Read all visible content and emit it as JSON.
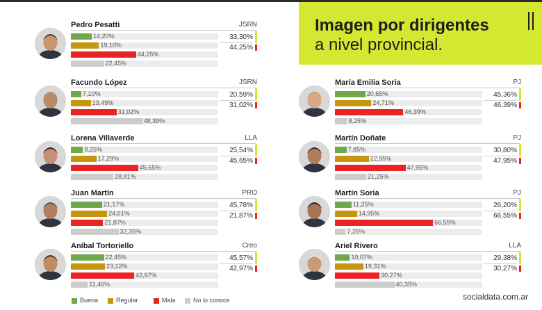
{
  "header": {
    "title_bold": "Imagen por dirigentes",
    "title_light": "a nivel provincial."
  },
  "brand": "socialdata.com.ar",
  "colors": {
    "buena": "#6fa84a",
    "regular": "#c8950e",
    "mala": "#ea2424",
    "no_lo_conoce": "#cccccc",
    "accent": "#d4e831",
    "track": "#ececec"
  },
  "legend": [
    {
      "key": "buena",
      "label": "Buena"
    },
    {
      "key": "regular",
      "label": "Regular"
    },
    {
      "key": "mala",
      "label": "Mala"
    },
    {
      "key": "no_lo_conoce",
      "label": "No lo conoce"
    }
  ],
  "chart_data": {
    "type": "bar",
    "series_names": [
      "Buena",
      "Regular",
      "Mala",
      "No lo conoce"
    ],
    "people": [
      {
        "name": "Pedro Pesatti",
        "party": "JSRN",
        "buena": "14,20%",
        "regular": "19,10%",
        "mala": "44,25%",
        "no_lo_conoce": "22,45%",
        "positive": "33,30%",
        "negative": "44,25%",
        "values": [
          14.2,
          19.1,
          44.25,
          22.45
        ]
      },
      {
        "name": "Facundo López",
        "party": "JSRN",
        "buena": "7,10%",
        "regular": "13,49%",
        "mala": "31,02%",
        "no_lo_conoce": "48,39%",
        "positive": "20,59%",
        "negative": "31,02%",
        "values": [
          7.1,
          13.49,
          31.02,
          48.39
        ]
      },
      {
        "name": "Lorena Villaverde",
        "party": "LLA",
        "buena": "8,25%",
        "regular": "17,29%",
        "mala": "45,65%",
        "no_lo_conoce": "28,81%",
        "positive": "25,54%",
        "negative": "45,65%",
        "values": [
          8.25,
          17.29,
          45.65,
          28.81
        ]
      },
      {
        "name": "Juan Martín",
        "party": "PRO",
        "buena": "21,17%",
        "regular": "24,61%",
        "mala": "21,87%",
        "no_lo_conoce": "32,35%",
        "positive": "45,78%",
        "negative": "21,87%",
        "values": [
          21.17,
          24.61,
          21.87,
          32.35
        ]
      },
      {
        "name": "Aníbal Tortoriello",
        "party": "Creo",
        "buena": "22,45%",
        "regular": "23,12%",
        "mala": "42,97%",
        "no_lo_conoce": "11,46%",
        "positive": "45,57%",
        "negative": "42,97%",
        "values": [
          22.45,
          23.12,
          42.97,
          11.46
        ]
      },
      {
        "name": "María Emilia Soria",
        "party": "PJ",
        "buena": "20,65%",
        "regular": "24,71%",
        "mala": "46,39%",
        "no_lo_conoce": "8,25%",
        "positive": "45,36%",
        "negative": "46,39%",
        "values": [
          20.65,
          24.71,
          46.39,
          8.25
        ]
      },
      {
        "name": "Martín Doñate",
        "party": "PJ",
        "buena": "7,85%",
        "regular": "22,95%",
        "mala": "47,95%",
        "no_lo_conoce": "21,25%",
        "positive": "30,80%",
        "negative": "47,95%",
        "values": [
          7.85,
          22.95,
          47.95,
          21.25
        ]
      },
      {
        "name": "Martín Soria",
        "party": "PJ",
        "buena": "11,25%",
        "regular": "14,95%",
        "mala": "66,55%",
        "no_lo_conoce": "7,25%",
        "positive": "26,20%",
        "negative": "66,55%",
        "values": [
          11.25,
          14.95,
          66.55,
          7.25
        ]
      },
      {
        "name": "Ariel Rivero",
        "party": "LLA",
        "buena": "10,07%",
        "regular": "19,31%",
        "mala": "30,27%",
        "no_lo_conoce": "40,35%",
        "positive": "29,38%",
        "negative": "30,27%",
        "values": [
          10.07,
          19.31,
          30.27,
          40.35
        ]
      }
    ]
  }
}
